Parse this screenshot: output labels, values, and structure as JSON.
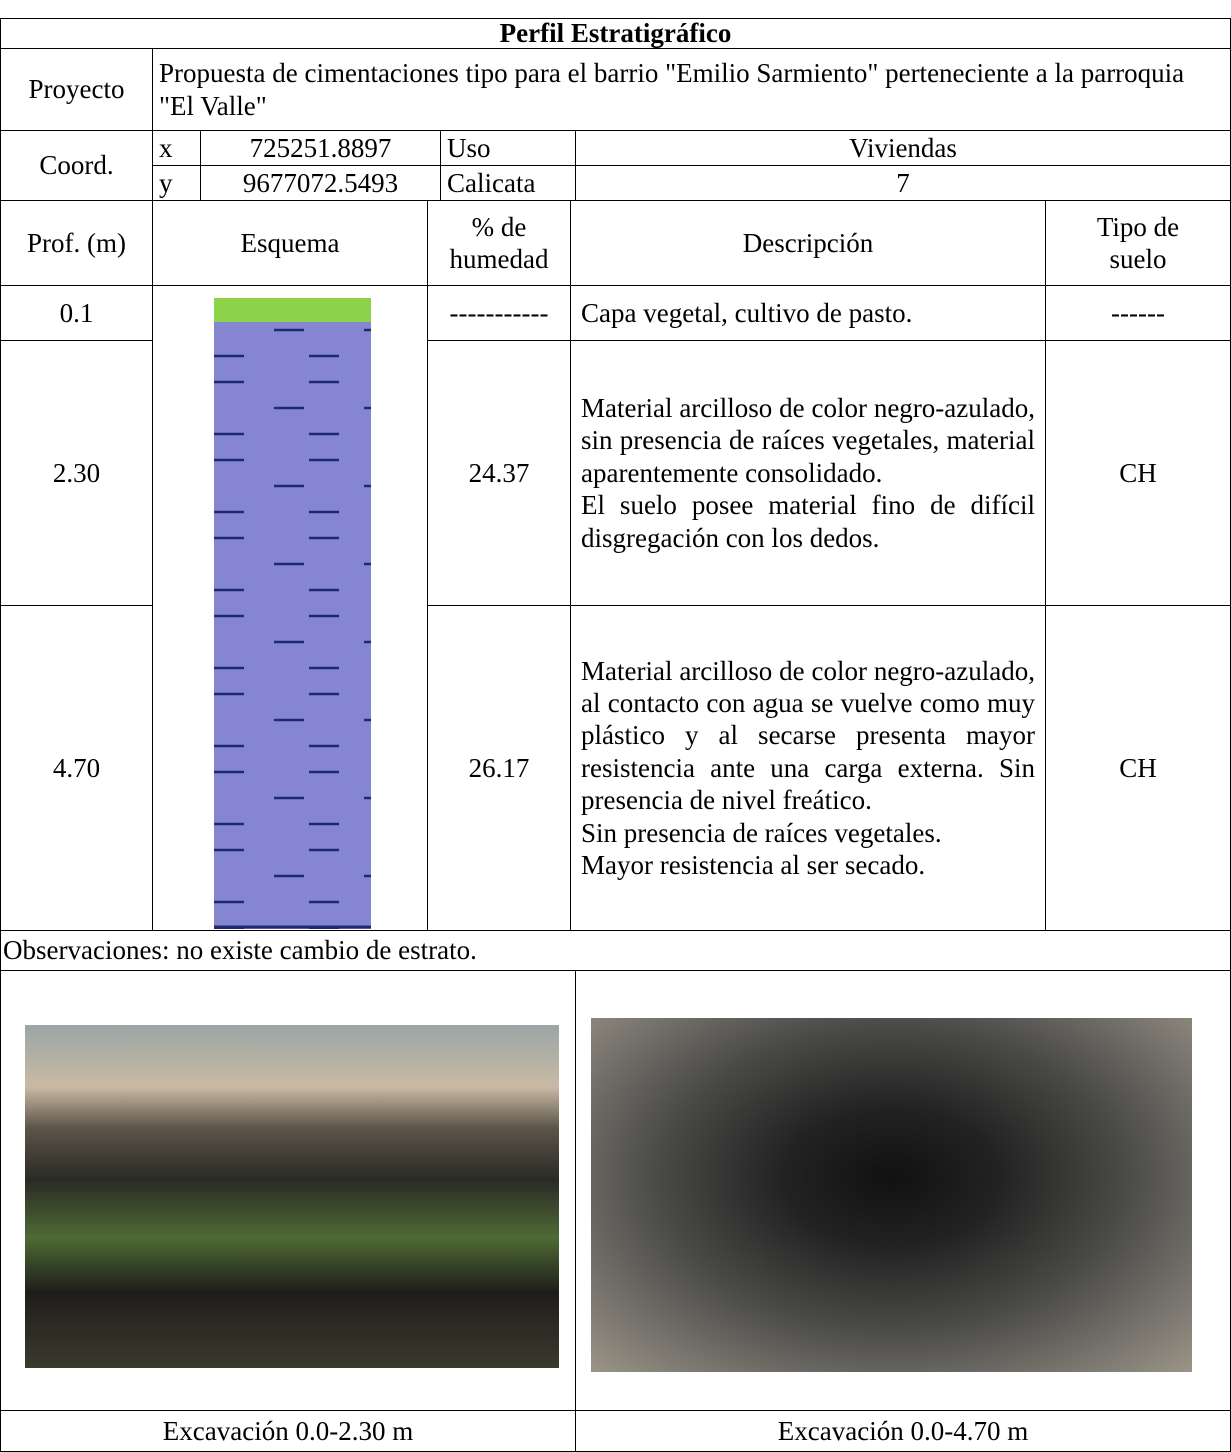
{
  "title": "Perfil Estratigráfico",
  "project": {
    "label": "Proyecto",
    "text": "Propuesta de cimentaciones tipo para el barrio \"Emilio Sarmiento\" perteneciente a la parroquia \"El Valle\""
  },
  "coords": {
    "label": "Coord.",
    "rows": [
      [
        "x",
        "725251.8897",
        "Uso",
        "Viviendas"
      ],
      [
        "y",
        "9677072.5493",
        "Calicata",
        "7"
      ]
    ]
  },
  "table": {
    "headers": [
      "Prof. (m)",
      "Esquema",
      "% de humedad",
      "Descripción",
      "Tipo de suelo"
    ],
    "rows": [
      [
        "0.1",
        "-----------",
        "Capa vegetal, cultivo de pasto.",
        "------"
      ],
      [
        "2.30",
        "24.37",
        "Material arcilloso de color negro-azulado, sin presencia de raíces vegetales, material aparentemente consolidado.\nEl suelo posee material fino de difícil disgregación con los dedos.",
        "CH"
      ],
      [
        "4.70",
        "26.17",
        "Material arcilloso de color negro-azulado, al contacto con agua se vuelve como muy plástico y al secarse presenta mayor resistencia ante una carga externa. Sin presencia de nivel freático.\nSin presencia de raíces vegetales.\nMayor resistencia al ser secado.",
        "CH"
      ]
    ]
  },
  "observations": "Observaciones: no existe cambio de estrato.",
  "photos": [
    {
      "caption": "Excavación 0.0-2.30 m"
    },
    {
      "caption": "Excavación 0.0-4.70 m"
    }
  ]
}
